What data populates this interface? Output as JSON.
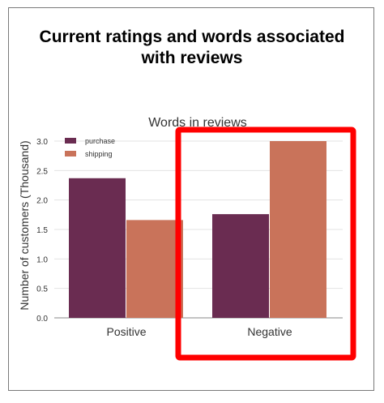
{
  "slide": {
    "title_line1": "Current ratings and words associated",
    "title_line2": "with reviews"
  },
  "colors": {
    "purchase": "#6a2c51",
    "shipping": "#c9735a",
    "highlight": "#ff0000",
    "grid": "#e3e3e3"
  },
  "chart_data": {
    "type": "bar",
    "title": "Words in reviews",
    "ylabel": "Number of customers (Thousand)",
    "xlabel": "",
    "categories": [
      "Positive",
      "Negative"
    ],
    "series": [
      {
        "name": "purchase",
        "values": [
          2.37,
          1.76
        ]
      },
      {
        "name": "shipping",
        "values": [
          1.66,
          3.0
        ]
      }
    ],
    "ylim": [
      0,
      3.0
    ],
    "yticks": [
      "0.0",
      "0.5",
      "1.0",
      "1.5",
      "2.0",
      "2.5",
      "3.0"
    ],
    "grid": true,
    "legend": "top-left",
    "highlight_category": "Negative"
  }
}
